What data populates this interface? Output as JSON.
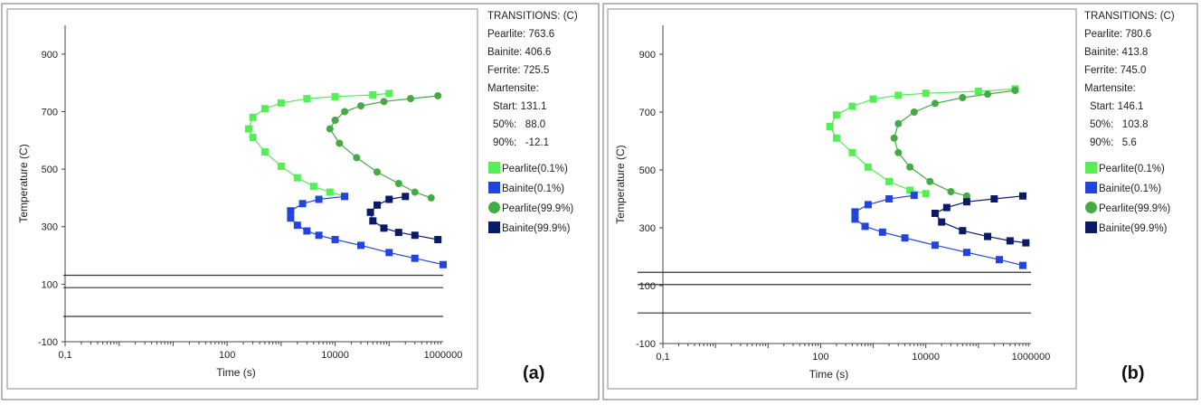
{
  "panels": [
    {
      "letter": "(a)",
      "info": {
        "header": "TRANSITIONS: (C)",
        "lines": [
          "Pearlite: 763.6",
          "Bainite: 406.6",
          "Ferrite: 725.5",
          "Martensite:",
          "Start: 131.1",
          "50%:   88.0",
          "90%:   -12.1"
        ]
      },
      "legend": [
        "Pearlite(0.1%)",
        "Bainite(0.1%)",
        "Pearlite(99.9%)",
        "Bainite(99.9%)"
      ]
    },
    {
      "letter": "(b)",
      "info": {
        "header": "TRANSITIONS: (C)",
        "lines": [
          "Pearlite: 780.6",
          "Bainite: 413.8",
          "Ferrite: 745.0",
          "Martensite:",
          "Start: 146.1",
          "50%:   103.8",
          "90%:   5.6"
        ]
      },
      "legend": [
        "Pearlite(0.1%)",
        "Bainite(0.1%)",
        "Pearlite(99.9%)",
        "Bainite(99.9%)"
      ]
    }
  ],
  "colors": {
    "pearlite_start": "#55ee55",
    "pearlite_finish": "#44aa44",
    "bainite_start": "#2244dd",
    "bainite_finish": "#0a1a66",
    "line": "#333333"
  },
  "chart_data": [
    {
      "type": "line",
      "title": "",
      "xlabel": "Time (s)",
      "ylabel": "Temperature (C)",
      "x_scale": "log",
      "xlim": [
        0.1,
        1000000
      ],
      "ylim": [
        -100,
        1000
      ],
      "x_ticks": [
        "0,1",
        "100",
        "10000",
        "1000000"
      ],
      "y_ticks": [
        -100,
        100,
        300,
        500,
        700,
        900
      ],
      "martensite_lines": [
        131.1,
        88.0,
        -12.1
      ],
      "series": [
        {
          "name": "Pearlite(0.1%)",
          "marker": "square",
          "points": [
            [
              15000,
              406
            ],
            [
              8000,
              420
            ],
            [
              4000,
              440
            ],
            [
              2000,
              470
            ],
            [
              1000,
              510
            ],
            [
              500,
              560
            ],
            [
              300,
              610
            ],
            [
              250,
              640
            ],
            [
              300,
              680
            ],
            [
              500,
              710
            ],
            [
              1000,
              730
            ],
            [
              3000,
              745
            ],
            [
              10000,
              752
            ],
            [
              50000,
              758
            ],
            [
              100000,
              763
            ]
          ]
        },
        {
          "name": "Bainite(0.1%)",
          "marker": "square",
          "points": [
            [
              15000,
              405
            ],
            [
              5000,
              395
            ],
            [
              2500,
              380
            ],
            [
              1500,
              355
            ],
            [
              1500,
              330
            ],
            [
              2000,
              305
            ],
            [
              3000,
              285
            ],
            [
              5000,
              270
            ],
            [
              10000,
              255
            ],
            [
              30000,
              235
            ],
            [
              100000,
              210
            ],
            [
              300000,
              190
            ],
            [
              1000000,
              168
            ]
          ]
        },
        {
          "name": "Pearlite(99.9%)",
          "marker": "circle",
          "points": [
            [
              600000,
              400
            ],
            [
              300000,
              420
            ],
            [
              150000,
              450
            ],
            [
              60000,
              490
            ],
            [
              25000,
              540
            ],
            [
              12000,
              590
            ],
            [
              8000,
              640
            ],
            [
              10000,
              670
            ],
            [
              15000,
              700
            ],
            [
              30000,
              720
            ],
            [
              80000,
              735
            ],
            [
              250000,
              745
            ],
            [
              800000,
              755
            ]
          ]
        },
        {
          "name": "Bainite(99.9%)",
          "marker": "square",
          "points": [
            [
              200000,
              405
            ],
            [
              100000,
              395
            ],
            [
              60000,
              375
            ],
            [
              45000,
              350
            ],
            [
              50000,
              320
            ],
            [
              80000,
              295
            ],
            [
              150000,
              280
            ],
            [
              300000,
              270
            ],
            [
              800000,
              255
            ]
          ]
        }
      ]
    },
    {
      "type": "line",
      "title": "",
      "xlabel": "Time (s)",
      "ylabel": "Temperature (C)",
      "x_scale": "log",
      "xlim": [
        0.1,
        1000000
      ],
      "ylim": [
        -100,
        1000
      ],
      "x_ticks": [
        "0,1",
        "100",
        "10000",
        "1000000"
      ],
      "y_ticks": [
        -100,
        100,
        300,
        500,
        700,
        900
      ],
      "martensite_lines": [
        146.1,
        103.8,
        5.6
      ],
      "series": [
        {
          "name": "Pearlite(0.1%)",
          "marker": "square",
          "points": [
            [
              10000,
              418
            ],
            [
              5000,
              430
            ],
            [
              2000,
              460
            ],
            [
              800,
              510
            ],
            [
              400,
              560
            ],
            [
              200,
              610
            ],
            [
              150,
              650
            ],
            [
              200,
              690
            ],
            [
              400,
              720
            ],
            [
              1000,
              745
            ],
            [
              3000,
              758
            ],
            [
              10000,
              765
            ],
            [
              100000,
              772
            ],
            [
              500000,
              780
            ]
          ]
        },
        {
          "name": "Bainite(0.1%)",
          "marker": "square",
          "points": [
            [
              6000,
              412
            ],
            [
              2000,
              400
            ],
            [
              800,
              380
            ],
            [
              450,
              355
            ],
            [
              450,
              330
            ],
            [
              700,
              305
            ],
            [
              1500,
              285
            ],
            [
              4000,
              265
            ],
            [
              15000,
              240
            ],
            [
              60000,
              215
            ],
            [
              250000,
              190
            ],
            [
              700000,
              170
            ]
          ]
        },
        {
          "name": "Pearlite(99.9%)",
          "marker": "circle",
          "points": [
            [
              60000,
              410
            ],
            [
              30000,
              425
            ],
            [
              12000,
              460
            ],
            [
              5000,
              510
            ],
            [
              3000,
              560
            ],
            [
              2500,
              610
            ],
            [
              3000,
              660
            ],
            [
              6000,
              700
            ],
            [
              15000,
              730
            ],
            [
              50000,
              750
            ],
            [
              150000,
              762
            ],
            [
              500000,
              775
            ]
          ]
        },
        {
          "name": "Bainite(99.9%)",
          "marker": "square",
          "points": [
            [
              700000,
              410
            ],
            [
              200000,
              400
            ],
            [
              60000,
              390
            ],
            [
              25000,
              370
            ],
            [
              15000,
              350
            ],
            [
              20000,
              320
            ],
            [
              50000,
              290
            ],
            [
              150000,
              270
            ],
            [
              400000,
              255
            ],
            [
              800000,
              248
            ]
          ]
        }
      ]
    }
  ]
}
